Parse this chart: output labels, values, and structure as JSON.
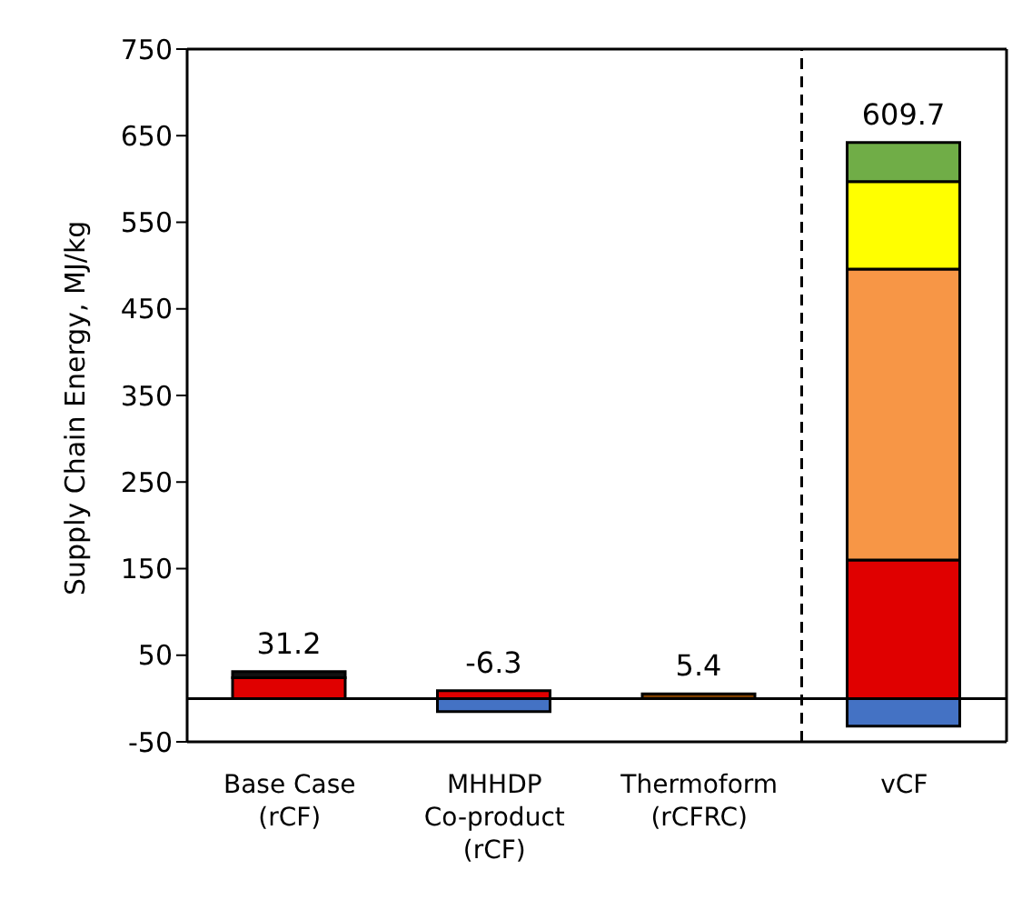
{
  "chart_data": {
    "type": "bar",
    "stacked": true,
    "ylabel": "Supply Chain Energy, MJ/kg",
    "categories": [
      "Base Case (rCF)",
      "MHHDP Co-product (rCF)",
      "Thermoform (rCFRC)",
      "vCF"
    ],
    "series": [
      {
        "color": "#4472c4",
        "values": [
          null,
          -15,
          null,
          -32
        ]
      },
      {
        "color": "#e00000",
        "values": [
          24,
          9,
          null,
          160
        ]
      },
      {
        "color": "#f79646",
        "values": [
          null,
          null,
          null,
          336
        ]
      },
      {
        "color": "#ffff00",
        "values": [
          null,
          null,
          null,
          101
        ]
      },
      {
        "color": "#70ad47",
        "values": [
          null,
          null,
          null,
          45
        ]
      },
      {
        "color": "#111111",
        "values": [
          7,
          null,
          null,
          null
        ]
      },
      {
        "color": "#7f3f00",
        "values": [
          null,
          null,
          5.4,
          null
        ]
      }
    ],
    "totals": [
      "31.2",
      "-6.3",
      "5.4",
      "609.7"
    ],
    "ylim": [
      -50,
      750
    ],
    "yticks": [
      -50,
      50,
      150,
      250,
      350,
      450,
      550,
      650,
      750
    ],
    "ref_lines": [
      {
        "axis": "y",
        "value": 0,
        "line_style": "solid",
        "color": "#000000"
      }
    ],
    "grid": false,
    "legend": false
  }
}
